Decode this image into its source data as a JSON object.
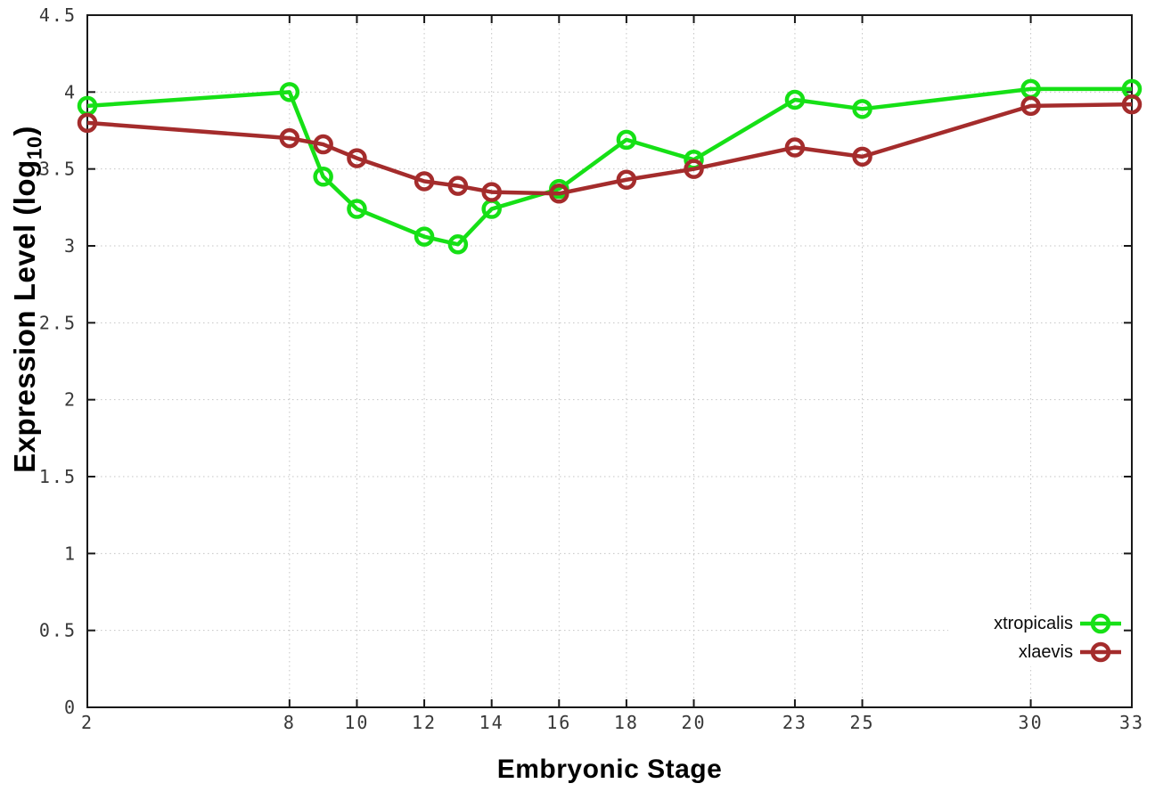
{
  "chart_data": {
    "type": "line",
    "title": "",
    "xlabel": "Embryonic Stage",
    "ylabel": "Expression Level (log10)",
    "ylabel_parts": {
      "prefix": "Expression Level (log",
      "sub": "10",
      "suffix": ")"
    },
    "xlim": [
      2,
      33
    ],
    "ylim": [
      0,
      4.5
    ],
    "grid": true,
    "legend_position": "bottom-right",
    "xtick_values": [
      2,
      8,
      10,
      12,
      14,
      16,
      18,
      20,
      23,
      25,
      30,
      33
    ],
    "xtick_labels": [
      "2",
      "8",
      "10",
      "12",
      "14",
      "16",
      "18",
      "20",
      "23",
      "25",
      "30",
      "33"
    ],
    "ytick_values": [
      0,
      0.5,
      1,
      1.5,
      2,
      2.5,
      3,
      3.5,
      4,
      4.5
    ],
    "ytick_labels": [
      "0",
      "0.5",
      "1",
      "1.5",
      "2",
      "2.5",
      "3",
      "3.5",
      "4",
      "4.5"
    ],
    "x": [
      2,
      8,
      9,
      10,
      12,
      13,
      14,
      16,
      18,
      20,
      23,
      25,
      30,
      33
    ],
    "series": [
      {
        "name": "xtropicalis",
        "color": "#16e016",
        "values": [
          3.91,
          4.0,
          3.45,
          3.24,
          3.06,
          3.01,
          3.24,
          3.37,
          3.69,
          3.56,
          3.95,
          3.89,
          4.02,
          4.02
        ]
      },
      {
        "name": "xlaevis",
        "color": "#a42c2c",
        "values": [
          3.8,
          3.7,
          3.66,
          3.57,
          3.42,
          3.39,
          3.35,
          3.34,
          3.43,
          3.5,
          3.64,
          3.58,
          3.91,
          3.92
        ]
      }
    ]
  }
}
